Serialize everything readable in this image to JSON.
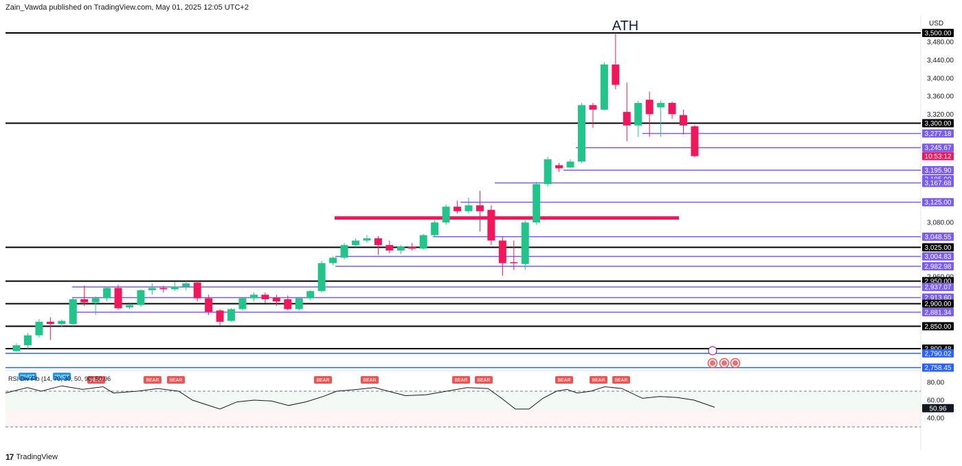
{
  "caption": "Zain_Vawda published on TradingView.com, May 01, 2025 12:05 UTC+2",
  "brand": "TradingView",
  "chart_data": {
    "type": "candlestick",
    "title": "",
    "currency": "USD",
    "annotation": "ATH",
    "y_ticks": [
      3480,
      3440,
      3400,
      3360,
      3320,
      3080,
      2960
    ],
    "y_range": [
      2730,
      3515
    ],
    "candles": [
      {
        "o": 2795,
        "h": 2812,
        "c": 2808,
        "l": 2793
      },
      {
        "o": 2808,
        "h": 2835,
        "c": 2830,
        "l": 2800
      },
      {
        "o": 2830,
        "h": 2866,
        "c": 2860,
        "l": 2825
      },
      {
        "o": 2860,
        "h": 2870,
        "c": 2855,
        "l": 2820
      },
      {
        "o": 2855,
        "h": 2865,
        "c": 2862,
        "l": 2848
      },
      {
        "o": 2855,
        "h": 2915,
        "c": 2910,
        "l": 2850
      },
      {
        "o": 2910,
        "h": 2940,
        "c": 2903,
        "l": 2895
      },
      {
        "o": 2903,
        "h": 2916,
        "c": 2912,
        "l": 2875
      },
      {
        "o": 2912,
        "h": 2938,
        "c": 2935,
        "l": 2905
      },
      {
        "o": 2935,
        "h": 2942,
        "c": 2890,
        "l": 2887
      },
      {
        "o": 2892,
        "h": 2900,
        "c": 2897,
        "l": 2888
      },
      {
        "o": 2897,
        "h": 2932,
        "c": 2930,
        "l": 2893
      },
      {
        "o": 2930,
        "h": 2945,
        "c": 2935,
        "l": 2920
      },
      {
        "o": 2935,
        "h": 2940,
        "c": 2932,
        "l": 2925
      },
      {
        "o": 2932,
        "h": 2948,
        "c": 2938,
        "l": 2928
      },
      {
        "o": 2938,
        "h": 2950,
        "c": 2945,
        "l": 2930
      },
      {
        "o": 2947,
        "h": 2950,
        "c": 2912,
        "l": 2905
      },
      {
        "o": 2912,
        "h": 2920,
        "c": 2882,
        "l": 2875
      },
      {
        "o": 2885,
        "h": 2888,
        "c": 2860,
        "l": 2852
      },
      {
        "o": 2862,
        "h": 2890,
        "c": 2888,
        "l": 2860
      },
      {
        "o": 2888,
        "h": 2915,
        "c": 2912,
        "l": 2885
      },
      {
        "o": 2912,
        "h": 2925,
        "c": 2920,
        "l": 2905
      },
      {
        "o": 2920,
        "h": 2925,
        "c": 2910,
        "l": 2902
      },
      {
        "o": 2913,
        "h": 2920,
        "c": 2905,
        "l": 2895
      },
      {
        "o": 2910,
        "h": 2918,
        "c": 2888,
        "l": 2885
      },
      {
        "o": 2888,
        "h": 2915,
        "c": 2912,
        "l": 2885
      },
      {
        "o": 2912,
        "h": 2930,
        "c": 2928,
        "l": 2908
      },
      {
        "o": 2928,
        "h": 2995,
        "c": 2990,
        "l": 2925
      },
      {
        "o": 2990,
        "h": 3005,
        "c": 3002,
        "l": 2985
      },
      {
        "o": 3002,
        "h": 3035,
        "c": 3030,
        "l": 2998
      },
      {
        "o": 3030,
        "h": 3045,
        "c": 3040,
        "l": 3025
      },
      {
        "o": 3040,
        "h": 3052,
        "c": 3045,
        "l": 3035
      },
      {
        "o": 3045,
        "h": 3050,
        "c": 3030,
        "l": 3008
      },
      {
        "o": 3030,
        "h": 3040,
        "c": 3018,
        "l": 3012
      },
      {
        "o": 3018,
        "h": 3030,
        "c": 3026,
        "l": 3010
      },
      {
        "o": 3026,
        "h": 3035,
        "c": 3022,
        "l": 3018
      },
      {
        "o": 3022,
        "h": 3055,
        "c": 3052,
        "l": 3020
      },
      {
        "o": 3052,
        "h": 3085,
        "c": 3080,
        "l": 3048
      },
      {
        "o": 3080,
        "h": 3120,
        "c": 3115,
        "l": 3075
      },
      {
        "o": 3115,
        "h": 3128,
        "c": 3105,
        "l": 3100
      },
      {
        "o": 3105,
        "h": 3135,
        "c": 3118,
        "l": 3100
      },
      {
        "o": 3118,
        "h": 3150,
        "c": 3105,
        "l": 3060
      },
      {
        "o": 3108,
        "h": 3118,
        "c": 3040,
        "l": 3030
      },
      {
        "o": 3040,
        "h": 3048,
        "c": 2990,
        "l": 2962
      },
      {
        "o": 2992,
        "h": 3040,
        "c": 2990,
        "l": 2975
      },
      {
        "o": 2988,
        "h": 3085,
        "c": 3080,
        "l": 2975
      },
      {
        "o": 3080,
        "h": 3170,
        "c": 3165,
        "l": 3075
      },
      {
        "o": 3165,
        "h": 3225,
        "c": 3220,
        "l": 3160
      },
      {
        "o": 3207,
        "h": 3212,
        "c": 3200,
        "l": 3192
      },
      {
        "o": 3202,
        "h": 3220,
        "c": 3215,
        "l": 3200
      },
      {
        "o": 3215,
        "h": 3345,
        "c": 3340,
        "l": 3212
      },
      {
        "o": 3340,
        "h": 3345,
        "c": 3330,
        "l": 3290
      },
      {
        "o": 3330,
        "h": 3435,
        "c": 3430,
        "l": 3328
      },
      {
        "o": 3430,
        "h": 3500,
        "c": 3385,
        "l": 3375
      },
      {
        "o": 3325,
        "h": 3390,
        "c": 3295,
        "l": 3260
      },
      {
        "o": 3295,
        "h": 3350,
        "c": 3345,
        "l": 3270
      },
      {
        "o": 3352,
        "h": 3370,
        "c": 3320,
        "l": 3270
      },
      {
        "o": 3335,
        "h": 3350,
        "c": 3345,
        "l": 3270
      },
      {
        "o": 3345,
        "h": 3348,
        "c": 3320,
        "l": 3310
      },
      {
        "o": 3318,
        "h": 3330,
        "c": 3295,
        "l": 3275
      },
      {
        "o": 3293,
        "h": 3296,
        "c": 3227,
        "l": 3225
      }
    ],
    "levels": [
      {
        "value": 3500.0,
        "label": "3,500.00",
        "kind": "major"
      },
      {
        "value": 3300.0,
        "label": "3,300.00",
        "kind": "major"
      },
      {
        "value": 3277.18,
        "label": "3,277.18",
        "kind": "fib"
      },
      {
        "value": 3245.67,
        "label": "3,245.67",
        "kind": "fib"
      },
      {
        "value": 3195.9,
        "label": "3,195.90",
        "kind": "fib"
      },
      {
        "value": 3195.9,
        "label": "3,195.90",
        "kind": "fib_tag"
      },
      {
        "value": 3167.68,
        "label": "3,167.68",
        "kind": "fib"
      },
      {
        "value": 3125.0,
        "label": "3,125.00",
        "kind": "fib"
      },
      {
        "value": 3048.55,
        "label": "3,048.55",
        "kind": "fib"
      },
      {
        "value": 3025.0,
        "label": "3,025.00",
        "kind": "major"
      },
      {
        "value": 3004.83,
        "label": "3,004.83",
        "kind": "fib"
      },
      {
        "value": 2982.98,
        "label": "2,982.98",
        "kind": "fib"
      },
      {
        "value": 2950.0,
        "label": "2,950.00",
        "kind": "major"
      },
      {
        "value": 2937.07,
        "label": "2,937.07",
        "kind": "fib"
      },
      {
        "value": 2913.6,
        "label": "2,913.60",
        "kind": "fib"
      },
      {
        "value": 2900.0,
        "label": "2,900.00",
        "kind": "major"
      },
      {
        "value": 2881.34,
        "label": "2,881.34",
        "kind": "fib"
      },
      {
        "value": 2850.0,
        "label": "2,850.00",
        "kind": "major"
      },
      {
        "value": 2800.48,
        "label": "2,800.48",
        "kind": "major"
      },
      {
        "value": 2790.02,
        "label": "2,790.02",
        "kind": "blue"
      },
      {
        "value": 2758.45,
        "label": "2,758.45",
        "kind": "blue"
      }
    ],
    "countdown": "10:53:12",
    "pink_zone": 3090,
    "rsi": {
      "label": "RSI Div Fib (14, 70, 30, 50, 90) 50.96",
      "value_label": "50.96",
      "ticks": [
        "80.00",
        "60.00",
        "40.00"
      ],
      "badge_pivot": "PIVOT",
      "badge_bear": "BEAR"
    },
    "colors": {
      "up": "#22c48a",
      "down": "#f0185a",
      "fib": "#7b5cf0",
      "blue": "#2962ff",
      "major": "#000000",
      "bear_badge": "#f05350",
      "pivot_badge": "#2196f3"
    }
  }
}
